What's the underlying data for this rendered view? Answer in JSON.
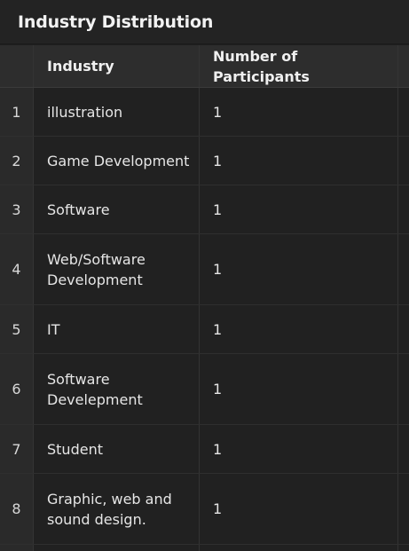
{
  "panel": {
    "title": "Industry Distribution"
  },
  "table": {
    "columns": {
      "index": "",
      "industry": "Industry",
      "participants": "Number of Participants"
    },
    "rows": [
      {
        "index": "1",
        "industry": "illustration",
        "participants": "1"
      },
      {
        "index": "2",
        "industry": "Game Development",
        "participants": "1"
      },
      {
        "index": "3",
        "industry": "Software",
        "participants": "1"
      },
      {
        "index": "4",
        "industry": "Web/Software Development",
        "participants": "1"
      },
      {
        "index": "5",
        "industry": "IT",
        "participants": "1"
      },
      {
        "index": "6",
        "industry": "Software Develepment",
        "participants": "1"
      },
      {
        "index": "7",
        "industry": "Student",
        "participants": "1"
      },
      {
        "index": "8",
        "industry": "Graphic, web and sound design.",
        "participants": "1"
      }
    ]
  }
}
